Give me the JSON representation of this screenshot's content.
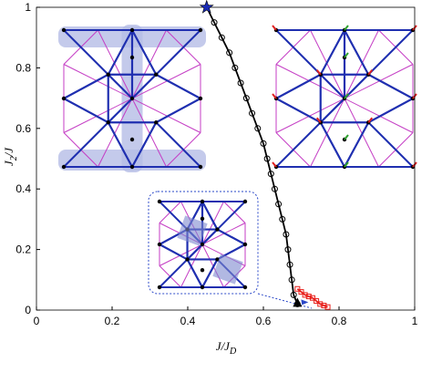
{
  "chart_data": {
    "type": "line",
    "x_label": "J/J",
    "x_label_sub": "D",
    "y_label": "J",
    "y_label_sub": "2",
    "y_label_rest": "/J",
    "xlim": [
      0,
      1
    ],
    "ylim": [
      0,
      1
    ],
    "xticks": [
      0,
      0.2,
      0.4,
      0.6,
      0.8,
      1
    ],
    "yticks": [
      0,
      0.2,
      0.4,
      0.6,
      0.8,
      1
    ],
    "series": [
      {
        "name": "black",
        "color": "#000000",
        "x": [
          0.45,
          0.47,
          0.49,
          0.51,
          0.525,
          0.54,
          0.555,
          0.57,
          0.585,
          0.6,
          0.61,
          0.62,
          0.63,
          0.64,
          0.65,
          0.66,
          0.665,
          0.67,
          0.675,
          0.68,
          0.69
        ],
        "values": [
          1.0,
          0.95,
          0.9,
          0.85,
          0.8,
          0.75,
          0.7,
          0.65,
          0.6,
          0.55,
          0.5,
          0.45,
          0.4,
          0.35,
          0.3,
          0.25,
          0.2,
          0.15,
          0.1,
          0.05,
          0.02
        ]
      },
      {
        "name": "red",
        "color": "#e8201c",
        "x": [
          0.69,
          0.7,
          0.71,
          0.72,
          0.73,
          0.74,
          0.75,
          0.76,
          0.77
        ],
        "values": [
          0.07,
          0.06,
          0.05,
          0.045,
          0.04,
          0.03,
          0.02,
          0.015,
          0.01
        ]
      }
    ],
    "star": {
      "x": 0.45,
      "y": 1.0,
      "color": "#1a2bb5"
    },
    "triangle": {
      "x": 0.69,
      "y": 0.02,
      "color": "#000000"
    }
  }
}
